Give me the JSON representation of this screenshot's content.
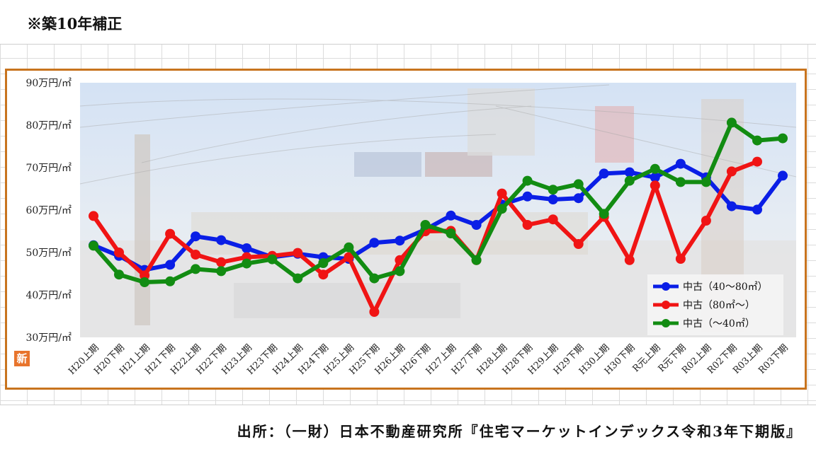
{
  "note": "※築10年補正",
  "source": "出所：（一財）日本不動産研究所『住宅マーケットインデックス令和3年下期版』",
  "badge": "新",
  "chart_data": {
    "type": "line",
    "y_tick_labels": [
      "30万円/㎡",
      "40万円/㎡",
      "50万円/㎡",
      "60万円/㎡",
      "70万円/㎡",
      "80万円/㎡",
      "90万円/㎡"
    ],
    "y_ticks": [
      30,
      40,
      50,
      60,
      70,
      80,
      90
    ],
    "ylim": [
      30,
      90
    ],
    "categories": [
      "H20上期",
      "H20下期",
      "H21上期",
      "H21下期",
      "H22上期",
      "H22下期",
      "H23上期",
      "H23下期",
      "H24上期",
      "H24下期",
      "H25上期",
      "H25下期",
      "H26上期",
      "H26下期",
      "H27上期",
      "H27下期",
      "H28上期",
      "H28下期",
      "H29上期",
      "H29下期",
      "H30上期",
      "H30下期",
      "R元上期",
      "R元下期",
      "R02上期",
      "R02下期",
      "R03上期",
      "R03下期"
    ],
    "series": [
      {
        "name": "中古（40～80㎡）",
        "color": "#0a1ee6",
        "values": [
          51.7,
          49.2,
          45.9,
          47.1,
          53.8,
          52.9,
          51.0,
          48.9,
          49.7,
          48.9,
          48.5,
          52.3,
          52.8,
          55.4,
          58.7,
          56.5,
          61.3,
          63.2,
          62.5,
          62.8,
          68.6,
          68.9,
          67.7,
          70.9,
          67.7,
          60.9,
          60.1,
          68.1
        ]
      },
      {
        "name": "中古（80㎡～）",
        "color": "#f01414",
        "values": [
          58.6,
          50.0,
          44.6,
          54.4,
          49.5,
          47.7,
          48.9,
          49.2,
          49.9,
          44.8,
          48.9,
          36.0,
          48.2,
          55.0,
          55.1,
          48.2,
          63.9,
          56.5,
          57.8,
          52.0,
          58.4,
          48.2,
          65.8,
          48.5,
          57.5,
          69.1,
          71.4,
          null
        ]
      },
      {
        "name": "中古（～40㎡）",
        "color": "#128c12",
        "values": [
          51.6,
          44.8,
          43.0,
          43.2,
          46.1,
          45.6,
          47.4,
          48.4,
          43.9,
          47.5,
          51.2,
          43.9,
          45.6,
          56.5,
          54.5,
          48.2,
          60.3,
          66.9,
          64.8,
          66.1,
          59.1,
          66.9,
          69.7,
          66.6,
          66.6,
          80.6,
          76.4,
          76.9
        ]
      }
    ]
  }
}
